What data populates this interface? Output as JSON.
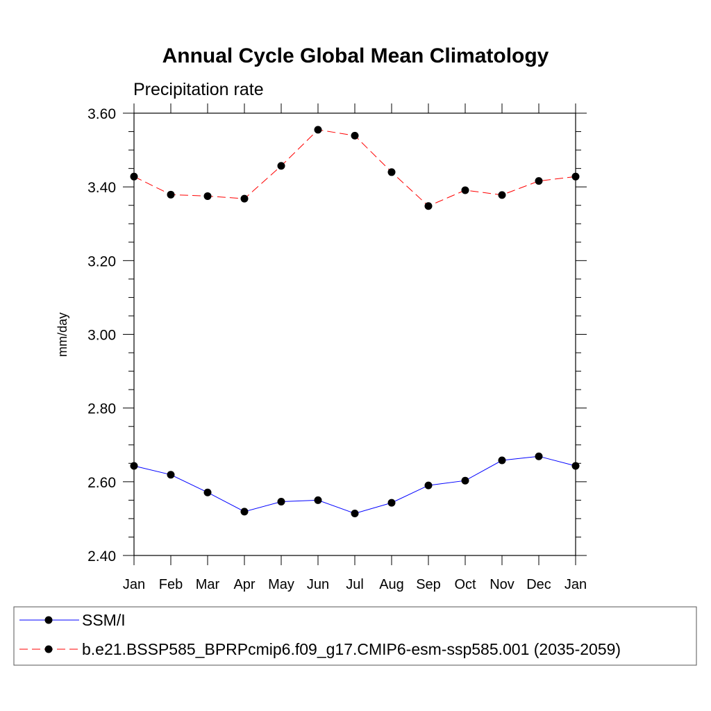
{
  "chart_data": {
    "type": "line",
    "title": "Annual Cycle Global Mean Climatology",
    "subtitle": "Precipitation rate",
    "xlabel": "",
    "ylabel": "mm/day",
    "categories": [
      "Jan",
      "Feb",
      "Mar",
      "Apr",
      "May",
      "Jun",
      "Jul",
      "Aug",
      "Sep",
      "Oct",
      "Nov",
      "Dec",
      "Jan"
    ],
    "ylim": [
      2.4,
      3.6
    ],
    "yticks": [
      "2.40",
      "2.60",
      "2.80",
      "3.00",
      "3.20",
      "3.40",
      "3.60"
    ],
    "grid": false,
    "legend_position": "bottom",
    "series": [
      {
        "name": "SSM/I",
        "color": "#0000ff",
        "line_style": "solid",
        "marker": "filled-circle",
        "values": [
          2.643,
          2.619,
          2.571,
          2.519,
          2.546,
          2.55,
          2.514,
          2.543,
          2.59,
          2.603,
          2.658,
          2.669,
          2.643
        ]
      },
      {
        "name": "b.e21.BSSP585_BPRPcmip6.f09_g17.CMIP6-esm-ssp585.001 (2035-2059)",
        "color": "#ff0000",
        "line_style": "dashed",
        "marker": "filled-circle",
        "values": [
          3.428,
          3.379,
          3.375,
          3.368,
          3.457,
          3.555,
          3.539,
          3.44,
          3.348,
          3.391,
          3.378,
          3.416,
          3.428
        ]
      }
    ]
  }
}
